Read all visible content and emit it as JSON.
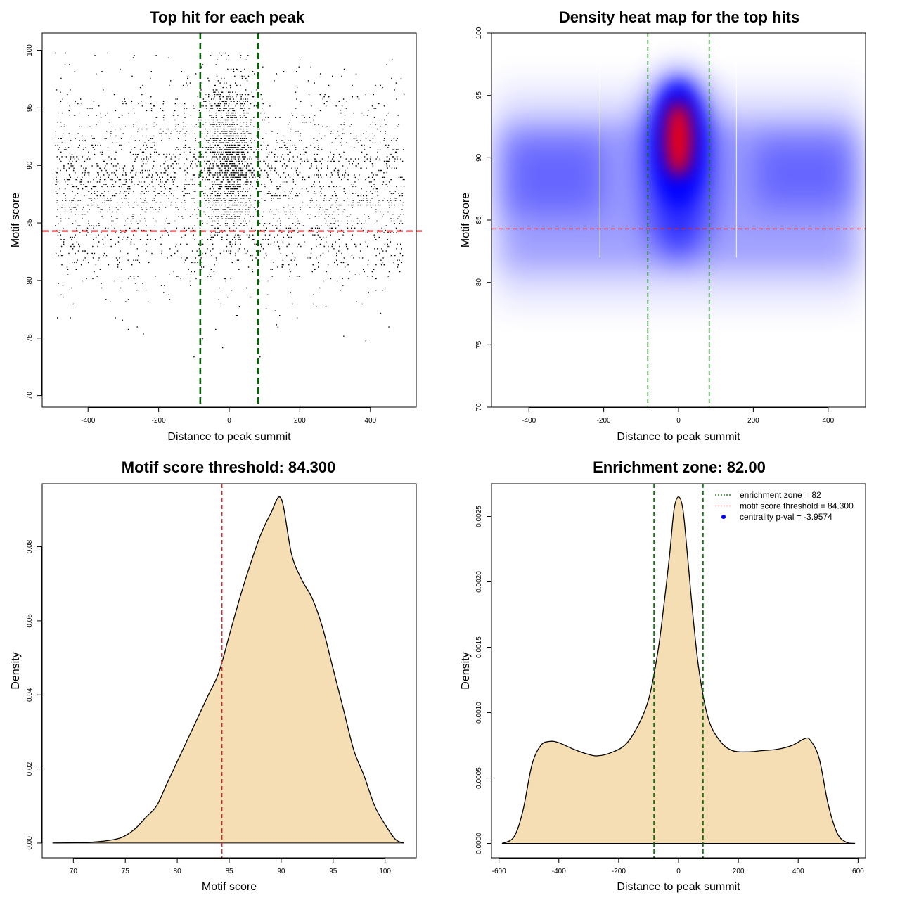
{
  "colors": {
    "threshold_line": "#d62728",
    "zone_line": "#006400",
    "density_fill": "#f5deb3",
    "heat_blue": "#0000ff",
    "heat_red": "#ff0000",
    "points": "#000000"
  },
  "chart_data": [
    {
      "type": "scatter",
      "title": "Top hit for each peak",
      "xlabel": "Distance to peak summit",
      "ylabel": "Motif score",
      "xlim": [
        -530,
        530
      ],
      "ylim": [
        69,
        101.5
      ],
      "xticks": [
        -400,
        -200,
        0,
        200,
        400
      ],
      "yticks": [
        70,
        75,
        80,
        85,
        90,
        95,
        100
      ],
      "hline": 84.3,
      "vlines": [
        -82,
        82
      ],
      "n_points": 9000
    },
    {
      "type": "heatmap",
      "title": "Density heat map for the top hits",
      "xlabel": "Distance to peak summit",
      "ylabel": "Motif score",
      "xlim": [
        -500,
        500
      ],
      "ylim": [
        70,
        100
      ],
      "xticks": [
        -400,
        -200,
        0,
        200,
        400
      ],
      "yticks": [
        70,
        75,
        80,
        85,
        90,
        95,
        100
      ],
      "hline": 84.3,
      "vlines": [
        -82,
        82
      ]
    },
    {
      "type": "area",
      "title": "Motif score threshold: 84.300",
      "xlabel": "Motif score",
      "ylabel": "Density",
      "xlim": [
        67,
        103
      ],
      "ylim": [
        -0.004,
        0.097
      ],
      "xticks": [
        70,
        75,
        80,
        85,
        90,
        95,
        100
      ],
      "yticks": [
        0.0,
        0.02,
        0.04,
        0.06,
        0.08
      ],
      "ytick_labels": [
        "0.00",
        "0.02",
        "0.04",
        "0.06",
        "0.08"
      ],
      "vline": 84.3,
      "x": [
        68,
        70,
        72,
        74,
        75,
        76,
        77,
        78,
        79,
        80,
        81,
        82,
        83,
        84,
        85,
        86,
        87,
        88,
        89,
        90,
        91,
        92,
        93,
        94,
        95,
        96,
        97,
        98,
        99,
        100,
        101,
        101.8
      ],
      "y": [
        0.0,
        0.0001,
        0.0003,
        0.001,
        0.002,
        0.004,
        0.007,
        0.01,
        0.016,
        0.022,
        0.028,
        0.034,
        0.04,
        0.046,
        0.056,
        0.066,
        0.075,
        0.083,
        0.089,
        0.093,
        0.078,
        0.071,
        0.066,
        0.058,
        0.047,
        0.036,
        0.025,
        0.018,
        0.01,
        0.005,
        0.001,
        0.0
      ]
    },
    {
      "type": "area",
      "title": "Enrichment zone: 82.00",
      "xlabel": "Distance to peak summit",
      "ylabel": "Density",
      "xlim": [
        -625,
        625
      ],
      "ylim": [
        -0.00011,
        0.00275
      ],
      "xticks": [
        -600,
        -400,
        -200,
        0,
        200,
        400,
        600
      ],
      "yticks": [
        0.0,
        0.0005,
        0.001,
        0.0015,
        0.002,
        0.0025
      ],
      "ytick_labels": [
        "0.0000",
        "0.0005",
        "0.0010",
        "0.0015",
        "0.0020",
        "0.0025"
      ],
      "vlines": [
        -82,
        82
      ],
      "x": [
        -590,
        -550,
        -520,
        -490,
        -460,
        -430,
        -400,
        -350,
        -300,
        -270,
        -230,
        -180,
        -140,
        -100,
        -70,
        -50,
        -30,
        -15,
        0,
        15,
        30,
        50,
        70,
        100,
        140,
        180,
        230,
        280,
        330,
        380,
        420,
        440,
        470,
        500,
        530,
        560,
        590
      ],
      "y": [
        0.0,
        5e-05,
        0.00025,
        0.0006,
        0.00075,
        0.00078,
        0.00077,
        0.00072,
        0.00068,
        0.00067,
        0.00069,
        0.00075,
        0.00088,
        0.0011,
        0.00145,
        0.0018,
        0.0022,
        0.00255,
        0.00265,
        0.00255,
        0.0022,
        0.0017,
        0.0013,
        0.00095,
        0.00078,
        0.00071,
        0.0007,
        0.00071,
        0.00072,
        0.00075,
        0.0008,
        0.00079,
        0.00065,
        0.0003,
        8e-05,
        1e-05,
        0.0
      ],
      "legend": [
        {
          "label": "enrichment zone = 82",
          "style": "dotted",
          "color": "#006400"
        },
        {
          "label": "motif score threshold = 84.300",
          "style": "dotted",
          "color": "#d62728"
        },
        {
          "label": "centrality p-val = -3.9574",
          "style": "point",
          "color": "#0000ff"
        }
      ]
    }
  ]
}
